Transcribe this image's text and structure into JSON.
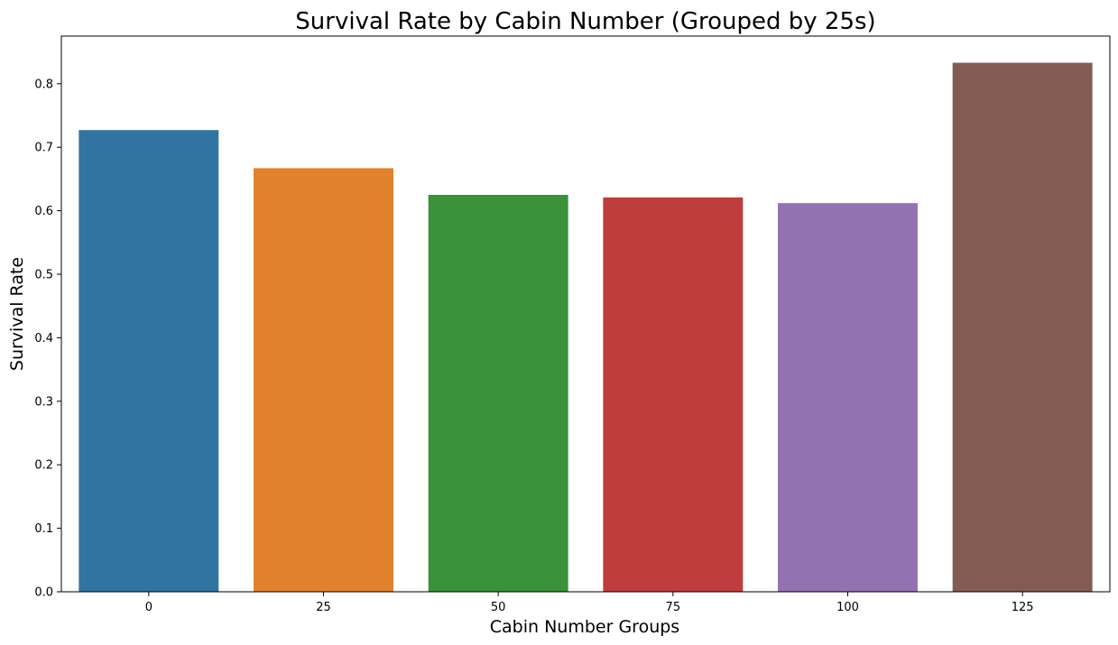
{
  "chart_data": {
    "type": "bar",
    "title": "Survival Rate by Cabin Number (Grouped by 25s)",
    "xlabel": "Cabin Number Groups",
    "ylabel": "Survival Rate",
    "categories": [
      "0",
      "25",
      "50",
      "75",
      "100",
      "125"
    ],
    "values": [
      0.727,
      0.667,
      0.625,
      0.621,
      0.612,
      0.833
    ],
    "colors": [
      "#3274a1",
      "#e1812c",
      "#3a923a",
      "#c03d3e",
      "#9372b2",
      "#845b53"
    ],
    "ylim": [
      0,
      0.875
    ],
    "yticks": [
      0.0,
      0.1,
      0.2,
      0.3,
      0.4,
      0.5,
      0.6,
      0.7,
      0.8
    ],
    "ytick_labels": [
      "0.0",
      "0.1",
      "0.2",
      "0.3",
      "0.4",
      "0.5",
      "0.6",
      "0.7",
      "0.8"
    ],
    "grid": false,
    "legend": "none"
  }
}
